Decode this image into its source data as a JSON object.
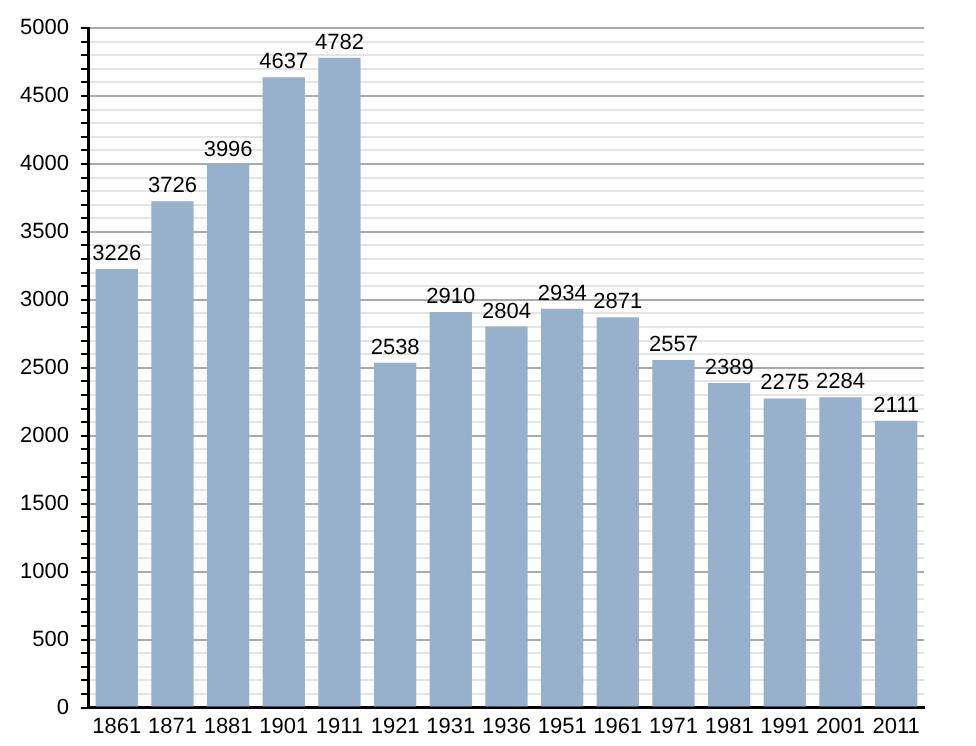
{
  "chart_data": {
    "type": "bar",
    "categories": [
      "1861",
      "1871",
      "1881",
      "1901",
      "1911",
      "1921",
      "1931",
      "1936",
      "1951",
      "1961",
      "1971",
      "1981",
      "1991",
      "2001",
      "2011"
    ],
    "values": [
      3226,
      3726,
      3996,
      4637,
      4782,
      2538,
      2910,
      2804,
      2934,
      2871,
      2557,
      2389,
      2275,
      2284,
      2111
    ],
    "color": "#97b0cc",
    "data_labels": true,
    "grid": "y",
    "legend": false,
    "ylim": [
      0,
      5000
    ],
    "yticks": [
      0,
      {
        "value": 100,
        "label": null
      },
      {
        "value": 200,
        "label": null
      },
      {
        "value": 300,
        "label": null
      },
      {
        "value": 400,
        "label": null
      },
      500,
      {
        "value": 600,
        "label": null
      },
      {
        "value": 700,
        "label": null
      },
      {
        "value": 800,
        "label": null
      },
      {
        "value": 900,
        "label": null
      },
      1000,
      {
        "value": 1100,
        "label": null
      },
      {
        "value": 1200,
        "label": null
      },
      {
        "value": 1300,
        "label": null
      },
      {
        "value": 1400,
        "label": null
      },
      1500,
      {
        "value": 1600,
        "label": null
      },
      {
        "value": 1700,
        "label": null
      },
      {
        "value": 1800,
        "label": null
      },
      {
        "value": 1900,
        "label": null
      },
      2000,
      {
        "value": 2100,
        "label": null
      },
      {
        "value": 2200,
        "label": null
      },
      {
        "value": 2300,
        "label": null
      },
      {
        "value": 2400,
        "label": null
      },
      2500,
      {
        "value": 2600,
        "label": null
      },
      {
        "value": 2700,
        "label": null
      },
      {
        "value": 2800,
        "label": null
      },
      {
        "value": 2900,
        "label": null
      },
      3000,
      {
        "value": 3100,
        "label": null
      },
      {
        "value": 3200,
        "label": null
      },
      {
        "value": 3300,
        "label": null
      },
      {
        "value": 3400,
        "label": null
      },
      3500,
      {
        "value": 3600,
        "label": null
      },
      {
        "value": 3700,
        "label": null
      },
      {
        "value": 3800,
        "label": null
      },
      {
        "value": 3900,
        "label": null
      },
      4000,
      {
        "value": 4100,
        "label": null
      },
      {
        "value": 4200,
        "label": null
      },
      {
        "value": 4300,
        "label": null
      },
      {
        "value": 4400,
        "label": null
      },
      4500,
      {
        "value": 4600,
        "label": null
      },
      {
        "value": 4700,
        "label": null
      },
      {
        "value": 4800,
        "label": null
      },
      {
        "value": 4900,
        "label": null
      },
      5000
    ]
  }
}
